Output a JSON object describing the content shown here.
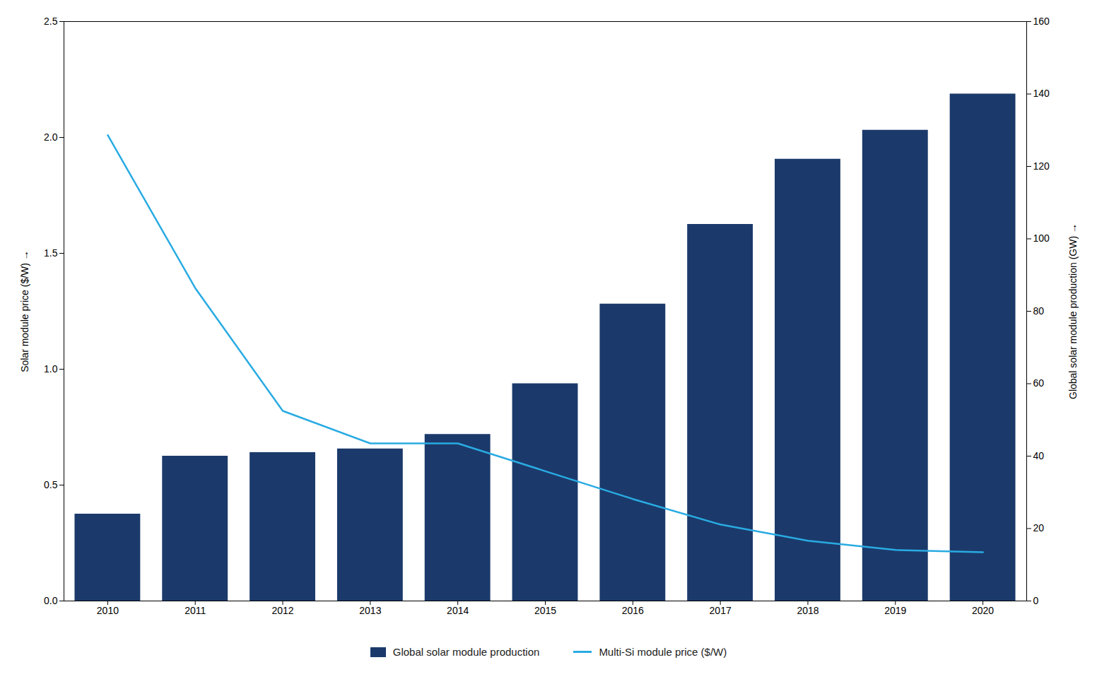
{
  "chart_data": {
    "type": "bar",
    "x": [
      2010,
      2011,
      2012,
      2013,
      2014,
      2015,
      2016,
      2017,
      2018,
      2019,
      2020
    ],
    "xlim": [
      2009.5,
      2020.5
    ],
    "xticks": [
      2010,
      2011,
      2012,
      2013,
      2014,
      2015,
      2016,
      2017,
      2018,
      2019,
      2020
    ],
    "y_label": "Solar module price ($/W)",
    "ylim": [
      0,
      2.5
    ],
    "yticks": [
      {
        "value": 0.0,
        "label": "0.0"
      },
      0.5,
      {
        "value": 1.0,
        "label": "1.0"
      },
      1.5,
      {
        "value": 2.0,
        "label": "2.0"
      },
      2.5
    ],
    "y2_label": "Global solar module production (GW)",
    "y2lim": [
      0,
      160
    ],
    "y2ticks": [
      0,
      20,
      40,
      60,
      80,
      100,
      120,
      140,
      160
    ],
    "grid": false,
    "legend": "bottom",
    "series": [
      {
        "name": "Global solar module production",
        "type": "bar",
        "axis": "y2",
        "color": "#1b3a6b",
        "values": [
          24,
          40,
          41,
          42,
          46,
          60,
          82,
          104,
          122,
          130,
          140
        ]
      },
      {
        "name": "Multi-Si module price ($/W)",
        "type": "line",
        "color": "#29abe2",
        "values": [
          2.01,
          1.35,
          0.82,
          0.68,
          0.68,
          0.56,
          0.44,
          0.33,
          0.26,
          0.22,
          0.21
        ]
      }
    ]
  }
}
